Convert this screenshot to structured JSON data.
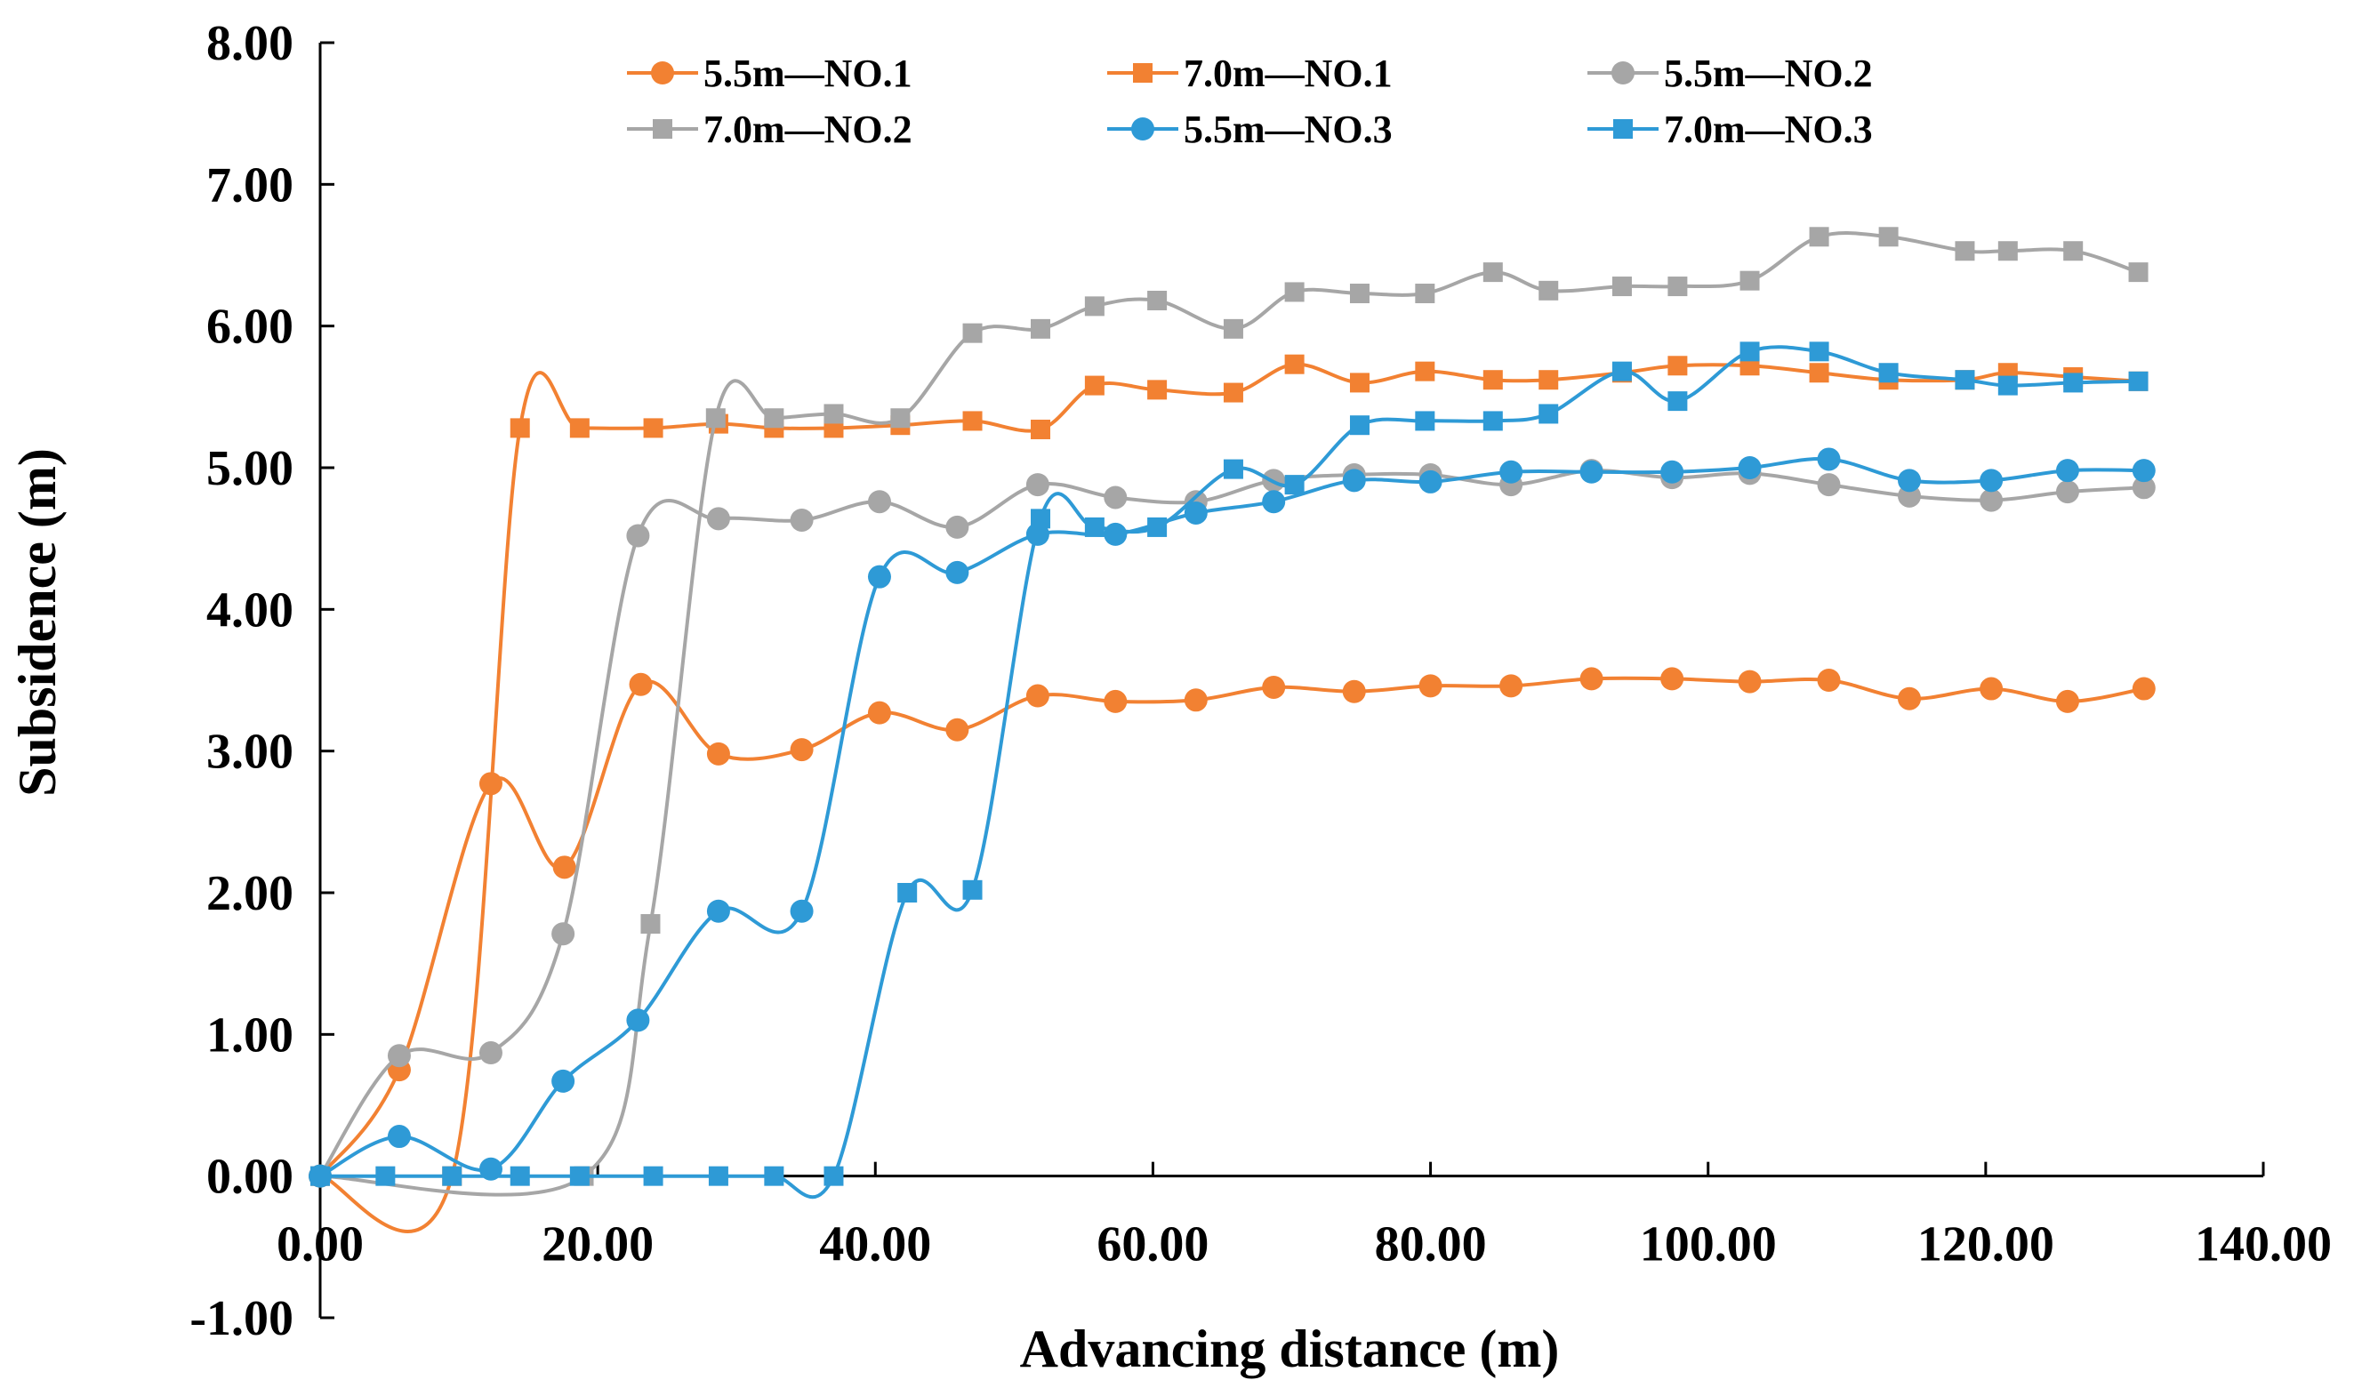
{
  "chart_data": {
    "type": "line",
    "title": "",
    "xlabel": "Advancing distance (m)",
    "ylabel": "Subsidence (m)",
    "xlim": [
      0,
      140
    ],
    "ylim": [
      -1,
      8
    ],
    "x_ticks": [
      "0.00",
      "20.00",
      "40.00",
      "60.00",
      "80.00",
      "100.00",
      "120.00",
      "140.00"
    ],
    "y_ticks": [
      "-1.00",
      "0.00",
      "1.00",
      "2.00",
      "3.00",
      "4.00",
      "5.00",
      "6.00",
      "7.00",
      "8.00"
    ],
    "legend_position": "top",
    "colors": {
      "orange": "#F28132",
      "gray": "#A6A6A6",
      "blue": "#2E9AD6"
    },
    "series": [
      {
        "name": "5.5m—NO.1",
        "color": "#F28132",
        "marker": "circle",
        "x": [
          0,
          5.7,
          12.3,
          17.6,
          23.1,
          28.7,
          34.7,
          40.3,
          45.9,
          51.7,
          57.3,
          63.1,
          68.7,
          74.5,
          80.0,
          85.8,
          91.6,
          97.4,
          103.0,
          108.7,
          114.5,
          120.4,
          125.9,
          131.4
        ],
        "values": [
          0,
          0.75,
          2.77,
          2.18,
          3.47,
          2.98,
          3.01,
          3.27,
          3.15,
          3.39,
          3.35,
          3.36,
          3.45,
          3.42,
          3.46,
          3.46,
          3.51,
          3.51,
          3.49,
          3.5,
          3.37,
          3.44,
          3.35,
          3.44
        ]
      },
      {
        "name": "7.0m—NO.1",
        "color": "#F28132",
        "marker": "square",
        "x": [
          0,
          9.5,
          14.4,
          18.7,
          24.0,
          28.7,
          32.7,
          37.0,
          41.8,
          47.0,
          51.9,
          55.8,
          60.3,
          65.8,
          70.2,
          74.9,
          79.6,
          84.5,
          88.5,
          93.8,
          97.8,
          103.0,
          108.0,
          113.0,
          118.5,
          121.6,
          126.3,
          131.0
        ],
        "values": [
          0,
          0,
          5.28,
          5.28,
          5.28,
          5.31,
          5.28,
          5.28,
          5.3,
          5.33,
          5.27,
          5.58,
          5.55,
          5.53,
          5.73,
          5.6,
          5.68,
          5.62,
          5.62,
          5.67,
          5.72,
          5.72,
          5.67,
          5.62,
          5.62,
          5.67,
          5.64,
          5.61
        ]
      },
      {
        "name": "5.5m—NO.2",
        "color": "#A6A6A6",
        "marker": "circle",
        "x": [
          0,
          5.7,
          12.3,
          17.5,
          22.9,
          28.7,
          34.7,
          40.3,
          45.9,
          51.7,
          57.3,
          63.1,
          68.7,
          74.5,
          80.0,
          85.8,
          91.6,
          97.4,
          103.0,
          108.7,
          114.5,
          120.4,
          125.9,
          131.4
        ],
        "values": [
          0,
          0.85,
          0.87,
          1.71,
          4.52,
          4.64,
          4.63,
          4.76,
          4.58,
          4.88,
          4.79,
          4.76,
          4.91,
          4.95,
          4.95,
          4.88,
          4.98,
          4.93,
          4.96,
          4.88,
          4.8,
          4.77,
          4.83,
          4.86
        ]
      },
      {
        "name": "7.0m—NO.2",
        "color": "#A6A6A6",
        "marker": "square",
        "x": [
          0,
          19.0,
          23.8,
          28.5,
          32.7,
          37.0,
          41.8,
          47.0,
          51.9,
          55.8,
          60.3,
          65.8,
          70.2,
          74.9,
          79.6,
          84.5,
          88.5,
          93.8,
          97.8,
          103.0,
          108.0,
          113.0,
          118.5,
          121.6,
          126.3,
          131.0
        ],
        "values": [
          0,
          0,
          1.78,
          5.35,
          5.35,
          5.38,
          5.35,
          5.95,
          5.98,
          6.14,
          6.18,
          5.98,
          6.24,
          6.23,
          6.23,
          6.38,
          6.25,
          6.28,
          6.28,
          6.32,
          6.63,
          6.63,
          6.53,
          6.53,
          6.53,
          6.38
        ]
      },
      {
        "name": "5.5m—NO.3",
        "color": "#2E9AD6",
        "marker": "circle",
        "x": [
          0,
          5.7,
          12.3,
          17.5,
          22.9,
          28.7,
          34.7,
          40.3,
          45.9,
          51.7,
          57.3,
          63.1,
          68.7,
          74.5,
          80.0,
          85.8,
          91.6,
          97.4,
          103.0,
          108.7,
          114.5,
          120.4,
          125.9,
          131.4
        ],
        "values": [
          0,
          0.28,
          0.05,
          0.67,
          1.1,
          1.87,
          1.87,
          4.23,
          4.26,
          4.53,
          4.53,
          4.68,
          4.76,
          4.91,
          4.9,
          4.97,
          4.97,
          4.97,
          5.0,
          5.06,
          4.91,
          4.91,
          4.98,
          4.98
        ]
      },
      {
        "name": "7.0m—NO.3",
        "color": "#2E9AD6",
        "marker": "square",
        "x": [
          0,
          4.7,
          9.5,
          14.4,
          18.7,
          24.0,
          28.7,
          32.7,
          37.0,
          42.3,
          47.0,
          51.9,
          55.8,
          60.3,
          65.8,
          70.2,
          74.9,
          79.6,
          84.5,
          88.5,
          93.8,
          97.8,
          103.0,
          108.0,
          113.0,
          118.5,
          121.6,
          126.3,
          131.0
        ],
        "values": [
          0,
          0,
          0,
          0,
          0,
          0,
          0,
          0,
          0,
          2.0,
          2.02,
          4.64,
          4.58,
          4.58,
          4.99,
          4.88,
          5.3,
          5.33,
          5.33,
          5.38,
          5.68,
          5.47,
          5.82,
          5.82,
          5.67,
          5.62,
          5.58,
          5.6,
          5.61
        ]
      }
    ]
  }
}
